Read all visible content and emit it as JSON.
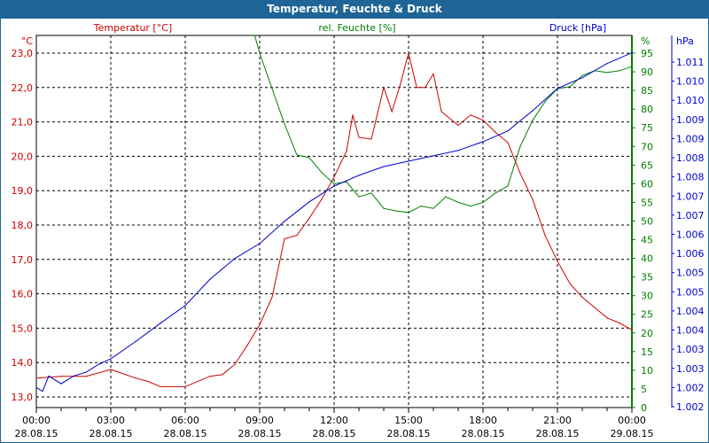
{
  "title": "Temperatur, Feuchte & Druck",
  "chart_data": {
    "type": "line",
    "title": "Temperatur, Feuchte & Druck",
    "x_unit": "hours since 28.08.15 00:00",
    "x_ticks": [
      {
        "time": "00:00",
        "date": "28.08.15"
      },
      {
        "time": "03:00",
        "date": "28.08.15"
      },
      {
        "time": "06:00",
        "date": "28.08.15"
      },
      {
        "time": "09:00",
        "date": "28.08.15"
      },
      {
        "time": "12:00",
        "date": "28.08.15"
      },
      {
        "time": "15:00",
        "date": "28.08.15"
      },
      {
        "time": "18:00",
        "date": "28.08.15"
      },
      {
        "time": "21:00",
        "date": "28.08.15"
      },
      {
        "time": "00:00",
        "date": "29.08.15"
      }
    ],
    "xlim": [
      0,
      24
    ],
    "grid": true,
    "axes": {
      "temperature": {
        "unit": "°C",
        "ylim": [
          13.0,
          23.0
        ],
        "ticks": [
          "13,0",
          "14,0",
          "15,0",
          "16,0",
          "17,0",
          "18,0",
          "19,0",
          "20,0",
          "21,0",
          "22,0",
          "23,0"
        ]
      },
      "humidity": {
        "unit": "%",
        "ylim": [
          0,
          95
        ],
        "ticks": [
          "0",
          "5",
          "10",
          "15",
          "20",
          "25",
          "30",
          "35",
          "40",
          "45",
          "50",
          "55",
          "60",
          "65",
          "70",
          "75",
          "80",
          "85",
          "90",
          "95"
        ]
      },
      "pressure": {
        "unit": "hPa",
        "ylim": [
          1001.5,
          1010.5
        ],
        "ticks": [
          "1.002",
          "1.002",
          "1.003",
          "1.003",
          "1.004",
          "1.004",
          "1.005",
          "1.005",
          "1.006",
          "1.006",
          "1.007",
          "1.007",
          "1.008",
          "1.008",
          "1.009",
          "1.009",
          "1.010",
          "1.010",
          "1.011"
        ]
      }
    },
    "series": [
      {
        "name": "Temperatur [°C]",
        "axis": "temperature",
        "color": "#cc0000",
        "x": [
          0,
          1,
          2,
          3,
          4,
          4.5,
          5,
          6,
          7,
          7.5,
          8,
          8.5,
          9,
          9.5,
          10,
          10.5,
          11,
          11.5,
          12,
          12.5,
          12.75,
          13,
          13.5,
          14,
          14.33,
          14.67,
          15,
          15.33,
          15.67,
          16,
          16.33,
          17,
          17.5,
          18,
          18.5,
          19,
          19.5,
          20,
          20.5,
          21,
          21.5,
          22,
          22.5,
          23,
          23.5,
          24
        ],
        "y": [
          13.55,
          13.6,
          13.6,
          13.8,
          13.55,
          13.45,
          13.3,
          13.3,
          13.6,
          13.65,
          13.95,
          14.5,
          15.1,
          15.9,
          17.6,
          17.7,
          18.2,
          18.75,
          19.4,
          20.15,
          21.2,
          20.55,
          20.5,
          22.0,
          21.3,
          22.1,
          23.0,
          22.0,
          22.0,
          22.4,
          21.3,
          20.9,
          21.2,
          21.05,
          20.7,
          20.4,
          19.5,
          18.75,
          17.7,
          16.95,
          16.3,
          15.9,
          15.6,
          15.3,
          15.15,
          14.95
        ]
      },
      {
        "name": "rel. Feuchte [%]",
        "axis": "humidity",
        "color": "#008000",
        "x": [
          8.8,
          9,
          9.5,
          10,
          10.5,
          11,
          11.5,
          12,
          12.5,
          13,
          13.5,
          14,
          14.5,
          15,
          15.5,
          16,
          16.5,
          17,
          17.5,
          18,
          18.5,
          19,
          19.5,
          20,
          20.5,
          21,
          21.5,
          22,
          22.5,
          23,
          23.5,
          24
        ],
        "y": [
          100,
          95,
          85.5,
          76,
          67.7,
          67,
          63,
          60,
          60.5,
          56.5,
          57.5,
          53.4,
          52.7,
          52.3,
          54,
          53.4,
          56.5,
          55,
          54,
          55,
          57.5,
          59.4,
          70,
          77,
          82,
          85.5,
          86,
          89,
          90.3,
          89.8,
          90.3,
          91.4
        ]
      },
      {
        "name": "Druck [hPa]",
        "axis": "pressure",
        "color": "#0000cc",
        "x": [
          0,
          0.25,
          0.5,
          1,
          1.5,
          2,
          2.5,
          3,
          4,
          5,
          6,
          7,
          8,
          9,
          10,
          11,
          12,
          13,
          14,
          15,
          16,
          17,
          18,
          19,
          20,
          21,
          22,
          23,
          24
        ],
        "y": [
          1002.0,
          1001.9,
          1002.3,
          1002.1,
          1002.3,
          1002.4,
          1002.6,
          1002.75,
          1003.2,
          1003.68,
          1004.14,
          1004.83,
          1005.37,
          1005.76,
          1006.34,
          1006.85,
          1007.26,
          1007.54,
          1007.77,
          1007.91,
          1008.05,
          1008.19,
          1008.42,
          1008.7,
          1009.23,
          1009.81,
          1010.09,
          1010.46,
          1010.74
        ]
      }
    ]
  },
  "colors": {
    "titlebar": "#1e6496",
    "temperature": "#cc0000",
    "humidity": "#008000",
    "pressure": "#0000cc"
  }
}
